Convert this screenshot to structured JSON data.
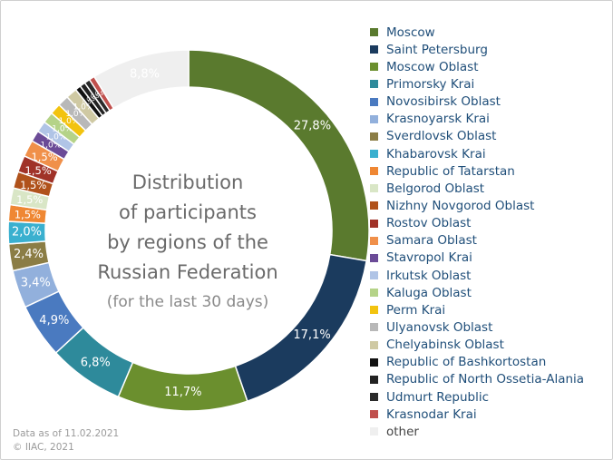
{
  "chart_data": {
    "type": "pie",
    "variant": "donut",
    "title": "Distribution of participants by regions of the Russian Federation",
    "subtitle": "(for the last 30 days)",
    "legend_position": "right",
    "categories": [
      "Moscow",
      "Saint Petersburg",
      "Moscow Oblast",
      "Primorsky Krai",
      "Novosibirsk Oblast",
      "Krasnoyarsk Krai",
      "Sverdlovsk Oblast",
      "Khabarovsk Krai",
      "Republic of Tatarstan",
      "Belgorod Oblast",
      "Nizhny Novgorod Oblast",
      "Rostov Oblast",
      "Samara Oblast",
      "Stavropol Krai",
      "Irkutsk Oblast",
      "Kaluga Oblast",
      "Perm Krai",
      "Ulyanovsk Oblast",
      "Chelyabinsk Oblast",
      "Republic of Bashkortostan",
      "Republic of North Ossetia-Alania",
      "Udmurt Republic",
      "Krasnodar Krai",
      "other"
    ],
    "values": [
      27.8,
      17.1,
      11.7,
      6.8,
      4.9,
      3.4,
      2.4,
      2.0,
      1.5,
      1.5,
      1.5,
      1.5,
      1.5,
      1.0,
      1.0,
      1.0,
      1.0,
      1.0,
      1.0,
      0.5,
      0.5,
      0.5,
      0.5,
      8.8
    ],
    "data_labels": [
      "27,8%",
      "17,1%",
      "11,7%",
      "6,8%",
      "4,9%",
      "3,4%",
      "2,4%",
      "2,0%",
      "1,5%",
      "1,5%",
      "1,5%",
      "1,5%",
      "1,5%",
      "1,0%",
      "1,0%",
      "1,0%",
      "1,0%",
      "1,0%",
      "1,0%",
      "0,5%",
      "0,5%",
      "0,5%",
      "0,5%",
      "8,8%"
    ],
    "colors": [
      "#5a7a2e",
      "#1b3b5e",
      "#6b8f2e",
      "#2e8a9b",
      "#4a7ac0",
      "#92b0dc",
      "#8b7d45",
      "#3ab0cf",
      "#ef8733",
      "#d9e6c6",
      "#b0521b",
      "#a03228",
      "#f0904a",
      "#6b4b97",
      "#b0c4e6",
      "#b5d388",
      "#f2c30f",
      "#b8b8b8",
      "#cfc9a3",
      "#111111",
      "#222222",
      "#2a2a2a",
      "#c0504d",
      "#efefef"
    ],
    "label_colors": [
      "#ffffff",
      "#ffffff",
      "#ffffff",
      "#ffffff",
      "#ffffff",
      "#ffffff",
      "#ffffff",
      "#ffffff",
      "#ffffff",
      "#ffffff",
      "#ffffff",
      "#ffffff",
      "#ffffff",
      "#ffffff",
      "#ffffff",
      "#ffffff",
      "#ffffff",
      "#ffffff",
      "#ffffff",
      "#ffffff",
      "#ffffff",
      "#ffffff",
      "#ffffff",
      "#ffffff"
    ]
  },
  "center_text": {
    "lines": [
      "Distribution",
      "of participants",
      "by regions of the",
      "Russian Federation"
    ],
    "subline": "(for the last 30 days)"
  },
  "footer": {
    "date_line": "Data as of 11.02.2021",
    "copyright": "© IIAC, 2021"
  }
}
